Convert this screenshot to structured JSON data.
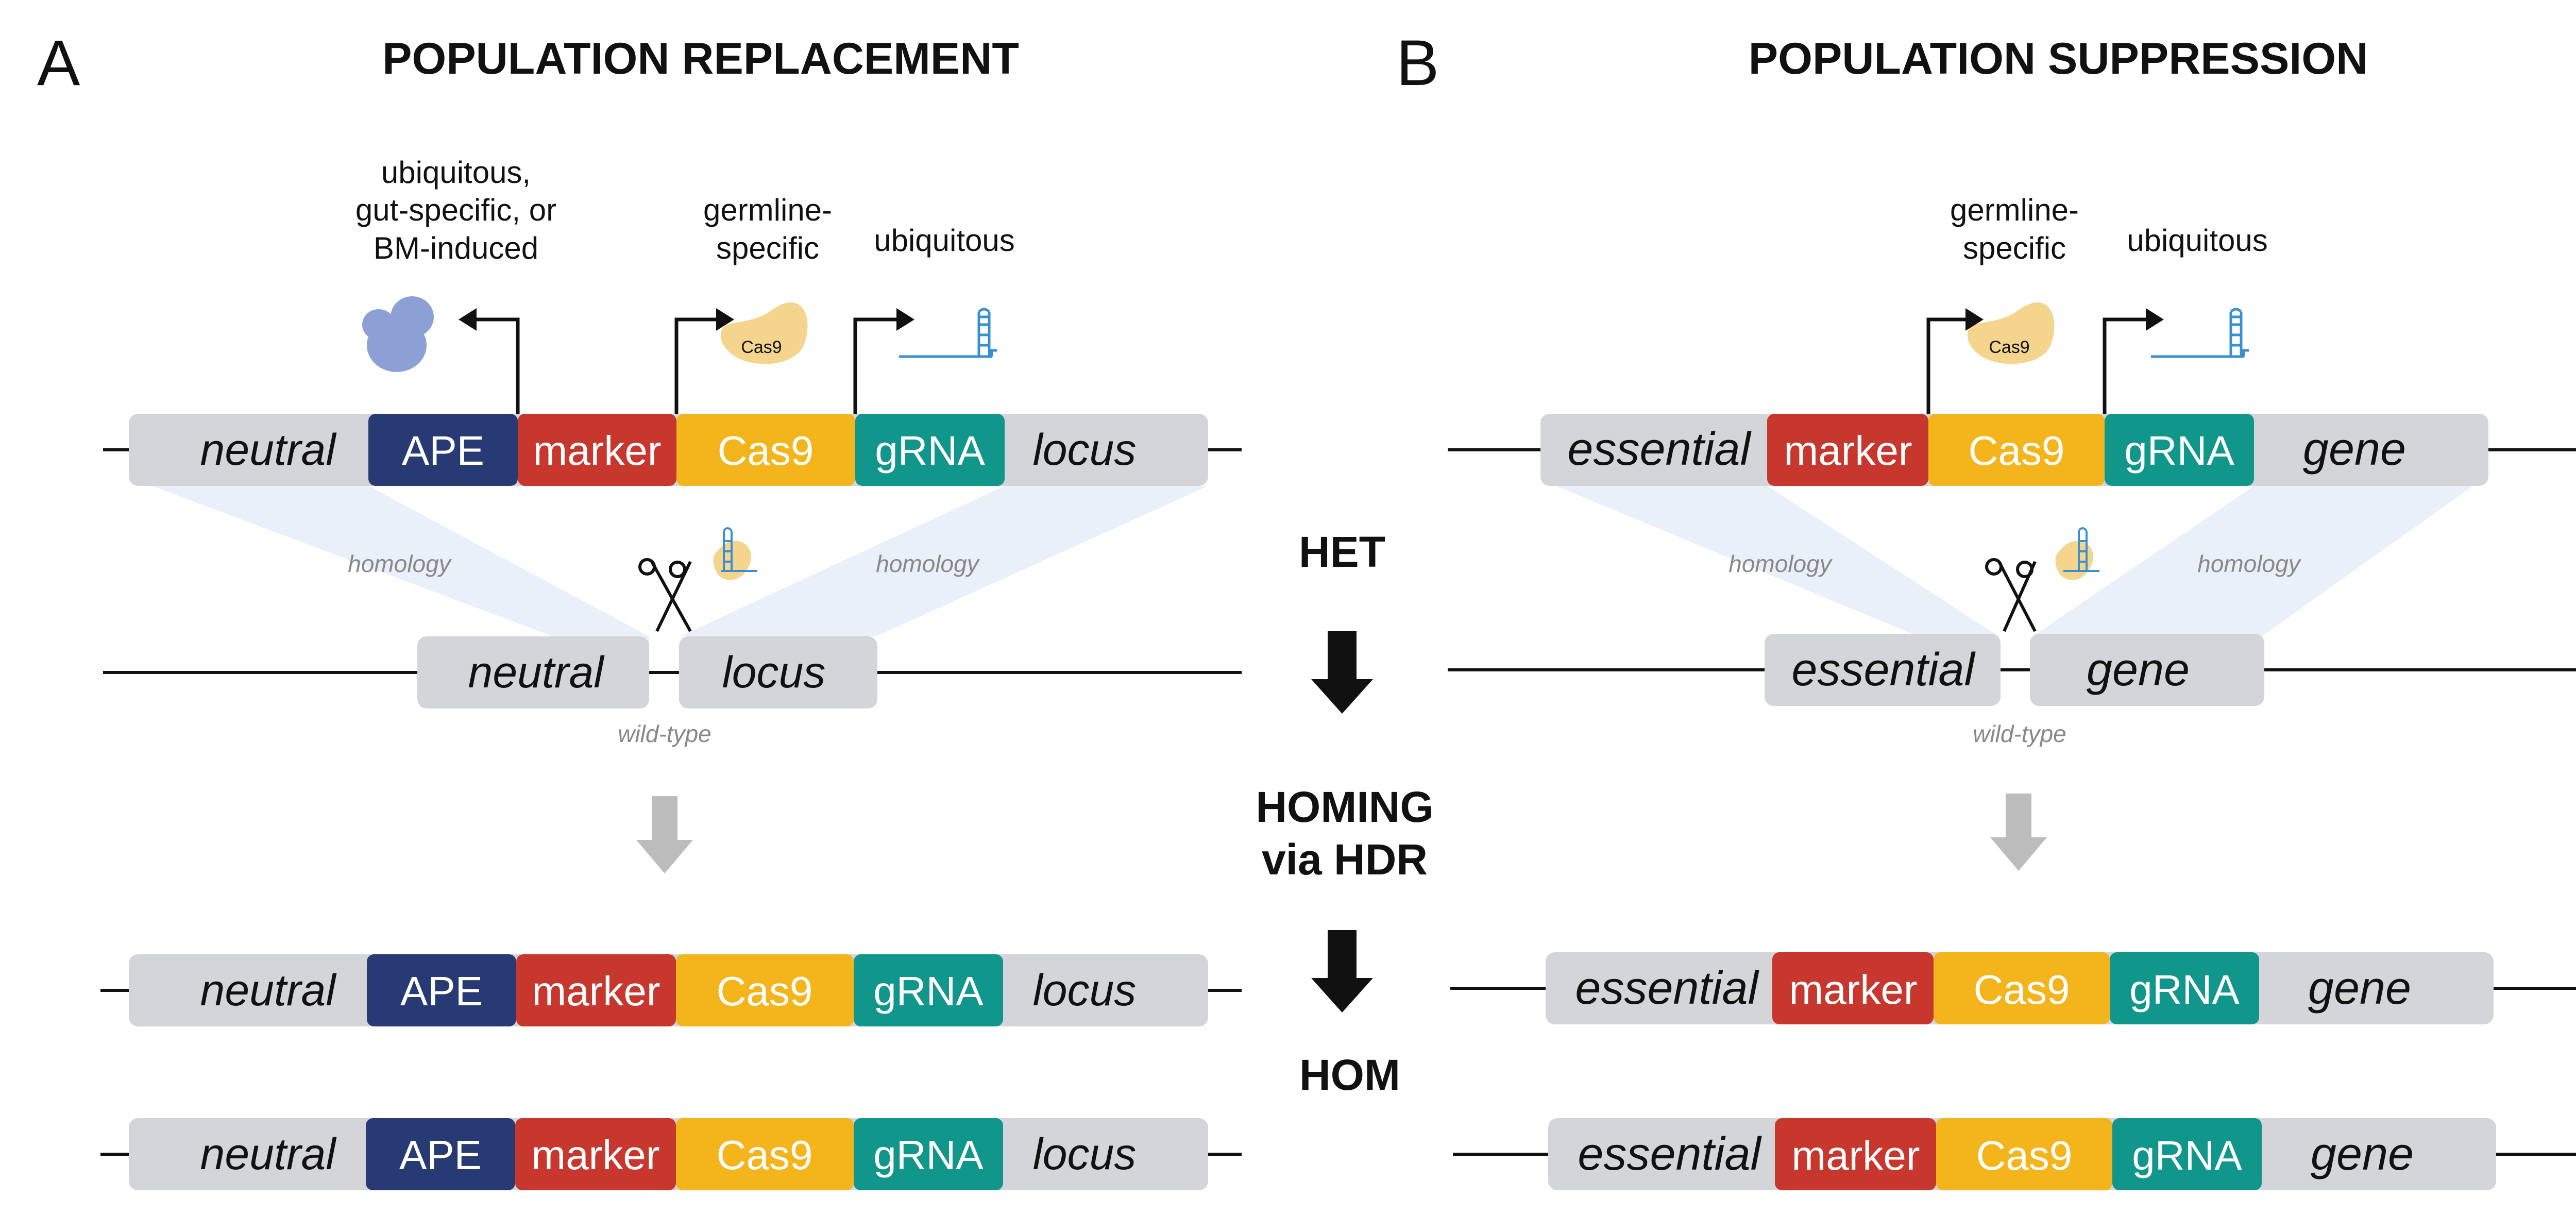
{
  "colors": {
    "ape": "#283a73",
    "marker": "#c8372d",
    "cas9": "#f4b41c",
    "grna": "#11968c",
    "flank": "#d3d5d8",
    "homology_fill": "#e9f0fa",
    "cas9_protein": "#f5d48e",
    "ape_protein": "#8da0d6",
    "grna_line": "#3a8fd0",
    "arrow_black": "#111111",
    "arrow_grey": "#bcbcbc"
  },
  "icons": [
    "ape-protein-icon",
    "cas9-protein-icon",
    "grna-hairpin-icon",
    "scissors-icon",
    "promoter-arrow-icon",
    "process-arrow-icon"
  ],
  "panel_a": {
    "letter": "A",
    "title": "POPULATION REPLACEMENT",
    "promoters": {
      "ape": [
        "ubiquitous,",
        "gut-specific, or",
        "BM-induced"
      ],
      "cas9": [
        "germline-",
        "specific"
      ],
      "grna": "ubiquitous"
    },
    "cas9_protein_label": "Cas9",
    "construct": {
      "left_flank": "neutral",
      "segments": [
        "APE",
        "marker",
        "Cas9",
        "gRNA"
      ],
      "right_flank": "locus"
    },
    "homology": "homology",
    "wildtype": {
      "left": "neutral",
      "right": "locus",
      "label": "wild-type"
    }
  },
  "panel_b": {
    "letter": "B",
    "title": "POPULATION SUPPRESSION",
    "promoters": {
      "cas9": [
        "germline-",
        "specific"
      ],
      "grna": "ubiquitous"
    },
    "cas9_protein_label": "Cas9",
    "construct": {
      "left_flank": "essential",
      "segments": [
        "marker",
        "Cas9",
        "gRNA"
      ],
      "right_flank": "gene"
    },
    "homology": "homology",
    "wildtype": {
      "left": "essential",
      "right": "gene",
      "label": "wild-type"
    }
  },
  "stages": {
    "het": "HET",
    "homing": [
      "HOMING",
      "via HDR"
    ],
    "hom": "HOM"
  }
}
